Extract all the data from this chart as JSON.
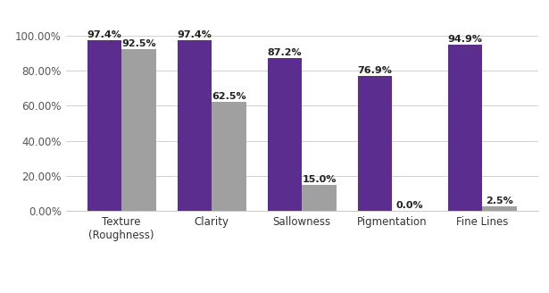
{
  "categories": [
    "Texture\n(Roughness)",
    "Clarity",
    "Sallowness",
    "Pigmentation",
    "Fine Lines"
  ],
  "series1_values": [
    97.4,
    97.4,
    87.2,
    76.9,
    94.9
  ],
  "series2_values": [
    92.5,
    62.5,
    15.0,
    0.0,
    2.5
  ],
  "series1_color": "#5b2d8e",
  "series2_color": "#a0a0a0",
  "ylim_max": 100,
  "yticks": [
    0,
    20,
    40,
    60,
    80,
    100
  ],
  "ytick_labels": [
    "0.00%",
    "20.00%",
    "40.00%",
    "60.00%",
    "80.00%",
    "100.00%"
  ],
  "bar_width": 0.38,
  "label_fontsize": 8,
  "tick_fontsize": 8.5,
  "legend_fontsize": 8.5,
  "background_color": "#ffffff",
  "grid_color": "#d0d0d0"
}
